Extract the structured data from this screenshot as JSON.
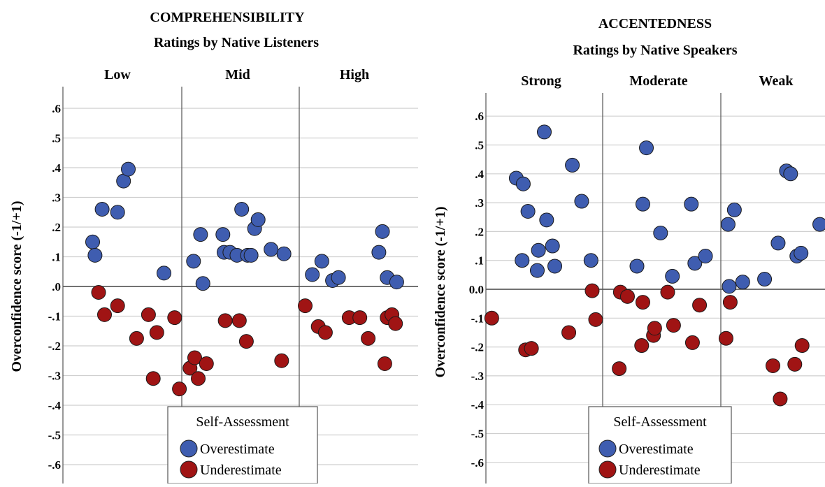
{
  "chart_data": [
    {
      "type": "scatter",
      "title": "COMPREHENSIBILITY",
      "subtitle": "Ratings by Native Listeners",
      "ylabel": "Overconfidence score (-1/+1)",
      "ylim": [
        -0.65,
        0.65
      ],
      "yticks": [
        ".6",
        ".5",
        ".4",
        ".3",
        ".2",
        ".1",
        ".0",
        "-.1",
        "-.2",
        "-.3",
        "-.4",
        "-.5",
        "-.6"
      ],
      "grid": true,
      "panels": [
        "Low",
        "Mid",
        "High"
      ],
      "legend": {
        "title": "Self-Assessment",
        "items": [
          "Overestimate",
          "Underestimate"
        ],
        "placement": "bottom-center"
      },
      "series": [
        {
          "name": "Overestimate",
          "color": "#3f5db0",
          "points": [
            {
              "panel": "Low",
              "x": 0.25,
              "y": 0.15
            },
            {
              "panel": "Low",
              "x": 0.27,
              "y": 0.105
            },
            {
              "panel": "Low",
              "x": 0.33,
              "y": 0.26
            },
            {
              "panel": "Low",
              "x": 0.46,
              "y": 0.25
            },
            {
              "panel": "Low",
              "x": 0.51,
              "y": 0.355
            },
            {
              "panel": "Low",
              "x": 0.55,
              "y": 0.395
            },
            {
              "panel": "Low",
              "x": 0.85,
              "y": 0.045
            },
            {
              "panel": "Mid",
              "x": 0.1,
              "y": 0.085
            },
            {
              "panel": "Mid",
              "x": 0.16,
              "y": 0.175
            },
            {
              "panel": "Mid",
              "x": 0.18,
              "y": 0.01
            },
            {
              "panel": "Mid",
              "x": 0.35,
              "y": 0.175
            },
            {
              "panel": "Mid",
              "x": 0.36,
              "y": 0.115
            },
            {
              "panel": "Mid",
              "x": 0.41,
              "y": 0.115
            },
            {
              "panel": "Mid",
              "x": 0.47,
              "y": 0.105
            },
            {
              "panel": "Mid",
              "x": 0.51,
              "y": 0.26
            },
            {
              "panel": "Mid",
              "x": 0.56,
              "y": 0.105
            },
            {
              "panel": "Mid",
              "x": 0.59,
              "y": 0.105
            },
            {
              "panel": "Mid",
              "x": 0.62,
              "y": 0.195
            },
            {
              "panel": "Mid",
              "x": 0.65,
              "y": 0.225
            },
            {
              "panel": "Mid",
              "x": 0.76,
              "y": 0.125
            },
            {
              "panel": "Mid",
              "x": 0.87,
              "y": 0.11
            },
            {
              "panel": "High",
              "x": 0.11,
              "y": 0.04
            },
            {
              "panel": "High",
              "x": 0.19,
              "y": 0.085
            },
            {
              "panel": "High",
              "x": 0.28,
              "y": 0.02
            },
            {
              "panel": "High",
              "x": 0.33,
              "y": 0.03
            },
            {
              "panel": "High",
              "x": 0.67,
              "y": 0.115
            },
            {
              "panel": "High",
              "x": 0.7,
              "y": 0.185
            },
            {
              "panel": "High",
              "x": 0.74,
              "y": 0.03
            },
            {
              "panel": "High",
              "x": 0.82,
              "y": 0.015
            }
          ]
        },
        {
          "name": "Underestimate",
          "color": "#a01414",
          "points": [
            {
              "panel": "Low",
              "x": 0.3,
              "y": -0.02
            },
            {
              "panel": "Low",
              "x": 0.35,
              "y": -0.095
            },
            {
              "panel": "Low",
              "x": 0.46,
              "y": -0.065
            },
            {
              "panel": "Low",
              "x": 0.62,
              "y": -0.175
            },
            {
              "panel": "Low",
              "x": 0.72,
              "y": -0.095
            },
            {
              "panel": "Low",
              "x": 0.76,
              "y": -0.31
            },
            {
              "panel": "Low",
              "x": 0.79,
              "y": -0.155
            },
            {
              "panel": "Low",
              "x": 0.94,
              "y": -0.105
            },
            {
              "panel": "Low",
              "x": 0.98,
              "y": -0.345
            },
            {
              "panel": "Mid",
              "x": 0.07,
              "y": -0.275
            },
            {
              "panel": "Mid",
              "x": 0.11,
              "y": -0.24
            },
            {
              "panel": "Mid",
              "x": 0.14,
              "y": -0.31
            },
            {
              "panel": "Mid",
              "x": 0.21,
              "y": -0.26
            },
            {
              "panel": "Mid",
              "x": 0.37,
              "y": -0.115
            },
            {
              "panel": "Mid",
              "x": 0.49,
              "y": -0.115
            },
            {
              "panel": "Mid",
              "x": 0.55,
              "y": -0.185
            },
            {
              "panel": "Mid",
              "x": 0.85,
              "y": -0.25
            },
            {
              "panel": "High",
              "x": 0.05,
              "y": -0.065
            },
            {
              "panel": "High",
              "x": 0.16,
              "y": -0.135
            },
            {
              "panel": "High",
              "x": 0.22,
              "y": -0.155
            },
            {
              "panel": "High",
              "x": 0.42,
              "y": -0.105
            },
            {
              "panel": "High",
              "x": 0.51,
              "y": -0.105
            },
            {
              "panel": "High",
              "x": 0.58,
              "y": -0.175
            },
            {
              "panel": "High",
              "x": 0.72,
              "y": -0.26
            },
            {
              "panel": "High",
              "x": 0.74,
              "y": -0.105
            },
            {
              "panel": "High",
              "x": 0.78,
              "y": -0.095
            },
            {
              "panel": "High",
              "x": 0.81,
              "y": -0.125
            }
          ]
        }
      ]
    },
    {
      "type": "scatter",
      "title": "ACCENTEDNESS",
      "subtitle": "Ratings by Native Speakers",
      "ylabel": "Overconfidence score (-1/+1)",
      "ylim": [
        -0.64,
        0.64
      ],
      "yticks": [
        ".6",
        ".5",
        ".4",
        ".3",
        ".2",
        ".1",
        "0.0",
        "-.1",
        "-.2",
        "-.3",
        "-.4",
        "-.5",
        "-.6"
      ],
      "grid": true,
      "panels": [
        "Strong",
        "Moderate",
        "Weak"
      ],
      "legend": {
        "title": "Self-Assessment",
        "items": [
          "Overestimate",
          "Underestimate"
        ],
        "placement": "bottom-center"
      },
      "series": [
        {
          "name": "Overestimate",
          "color": "#3f5db0",
          "points": [
            {
              "panel": "Strong",
              "x": 0.26,
              "y": 0.385
            },
            {
              "panel": "Strong",
              "x": 0.32,
              "y": 0.365
            },
            {
              "panel": "Strong",
              "x": 0.36,
              "y": 0.27
            },
            {
              "panel": "Strong",
              "x": 0.5,
              "y": 0.545
            },
            {
              "panel": "Strong",
              "x": 0.31,
              "y": 0.1
            },
            {
              "panel": "Strong",
              "x": 0.44,
              "y": 0.065
            },
            {
              "panel": "Strong",
              "x": 0.45,
              "y": 0.135
            },
            {
              "panel": "Strong",
              "x": 0.52,
              "y": 0.24
            },
            {
              "panel": "Strong",
              "x": 0.59,
              "y": 0.08
            },
            {
              "panel": "Strong",
              "x": 0.57,
              "y": 0.15
            },
            {
              "panel": "Strong",
              "x": 0.74,
              "y": 0.43
            },
            {
              "panel": "Strong",
              "x": 0.82,
              "y": 0.305
            },
            {
              "panel": "Strong",
              "x": 0.9,
              "y": 0.1
            },
            {
              "panel": "Moderate",
              "x": 0.29,
              "y": 0.08
            },
            {
              "panel": "Moderate",
              "x": 0.37,
              "y": 0.49
            },
            {
              "panel": "Moderate",
              "x": 0.34,
              "y": 0.295
            },
            {
              "panel": "Moderate",
              "x": 0.49,
              "y": 0.195
            },
            {
              "panel": "Moderate",
              "x": 0.59,
              "y": 0.045
            },
            {
              "panel": "Moderate",
              "x": 0.75,
              "y": 0.295
            },
            {
              "panel": "Moderate",
              "x": 0.78,
              "y": 0.09
            },
            {
              "panel": "Moderate",
              "x": 0.87,
              "y": 0.115
            },
            {
              "panel": "Weak",
              "x": 0.07,
              "y": 0.225
            },
            {
              "panel": "Weak",
              "x": 0.13,
              "y": 0.275
            },
            {
              "panel": "Weak",
              "x": 0.08,
              "y": 0.01
            },
            {
              "panel": "Weak",
              "x": 0.21,
              "y": 0.025
            },
            {
              "panel": "Weak",
              "x": 0.42,
              "y": 0.035
            },
            {
              "panel": "Weak",
              "x": 0.55,
              "y": 0.16
            },
            {
              "panel": "Weak",
              "x": 0.63,
              "y": 0.41
            },
            {
              "panel": "Weak",
              "x": 0.67,
              "y": 0.4
            },
            {
              "panel": "Weak",
              "x": 0.73,
              "y": 0.115
            },
            {
              "panel": "Weak",
              "x": 0.77,
              "y": 0.125
            },
            {
              "panel": "Weak",
              "x": 0.95,
              "y": 0.225
            }
          ]
        },
        {
          "name": "Underestimate",
          "color": "#a01414",
          "points": [
            {
              "panel": "Strong",
              "x": 0.05,
              "y": -0.1
            },
            {
              "panel": "Strong",
              "x": 0.34,
              "y": -0.21
            },
            {
              "panel": "Strong",
              "x": 0.39,
              "y": -0.205
            },
            {
              "panel": "Strong",
              "x": 0.71,
              "y": -0.15
            },
            {
              "panel": "Strong",
              "x": 0.91,
              "y": -0.005
            },
            {
              "panel": "Strong",
              "x": 0.94,
              "y": -0.105
            },
            {
              "panel": "Moderate",
              "x": 0.15,
              "y": -0.01
            },
            {
              "panel": "Moderate",
              "x": 0.21,
              "y": -0.025
            },
            {
              "panel": "Moderate",
              "x": 0.14,
              "y": -0.275
            },
            {
              "panel": "Moderate",
              "x": 0.33,
              "y": -0.195
            },
            {
              "panel": "Moderate",
              "x": 0.34,
              "y": -0.045
            },
            {
              "panel": "Moderate",
              "x": 0.43,
              "y": -0.16
            },
            {
              "panel": "Moderate",
              "x": 0.44,
              "y": -0.135
            },
            {
              "panel": "Moderate",
              "x": 0.55,
              "y": -0.01
            },
            {
              "panel": "Moderate",
              "x": 0.6,
              "y": -0.125
            },
            {
              "panel": "Moderate",
              "x": 0.76,
              "y": -0.185
            },
            {
              "panel": "Moderate",
              "x": 0.82,
              "y": -0.055
            },
            {
              "panel": "Weak",
              "x": 0.05,
              "y": -0.17
            },
            {
              "panel": "Weak",
              "x": 0.09,
              "y": -0.045
            },
            {
              "panel": "Weak",
              "x": 0.5,
              "y": -0.265
            },
            {
              "panel": "Weak",
              "x": 0.57,
              "y": -0.38
            },
            {
              "panel": "Weak",
              "x": 0.71,
              "y": -0.26
            },
            {
              "panel": "Weak",
              "x": 0.78,
              "y": -0.195
            },
            {
              "panel": "Weak",
              "x": 0.02,
              "y": -0.61
            }
          ]
        }
      ]
    }
  ]
}
